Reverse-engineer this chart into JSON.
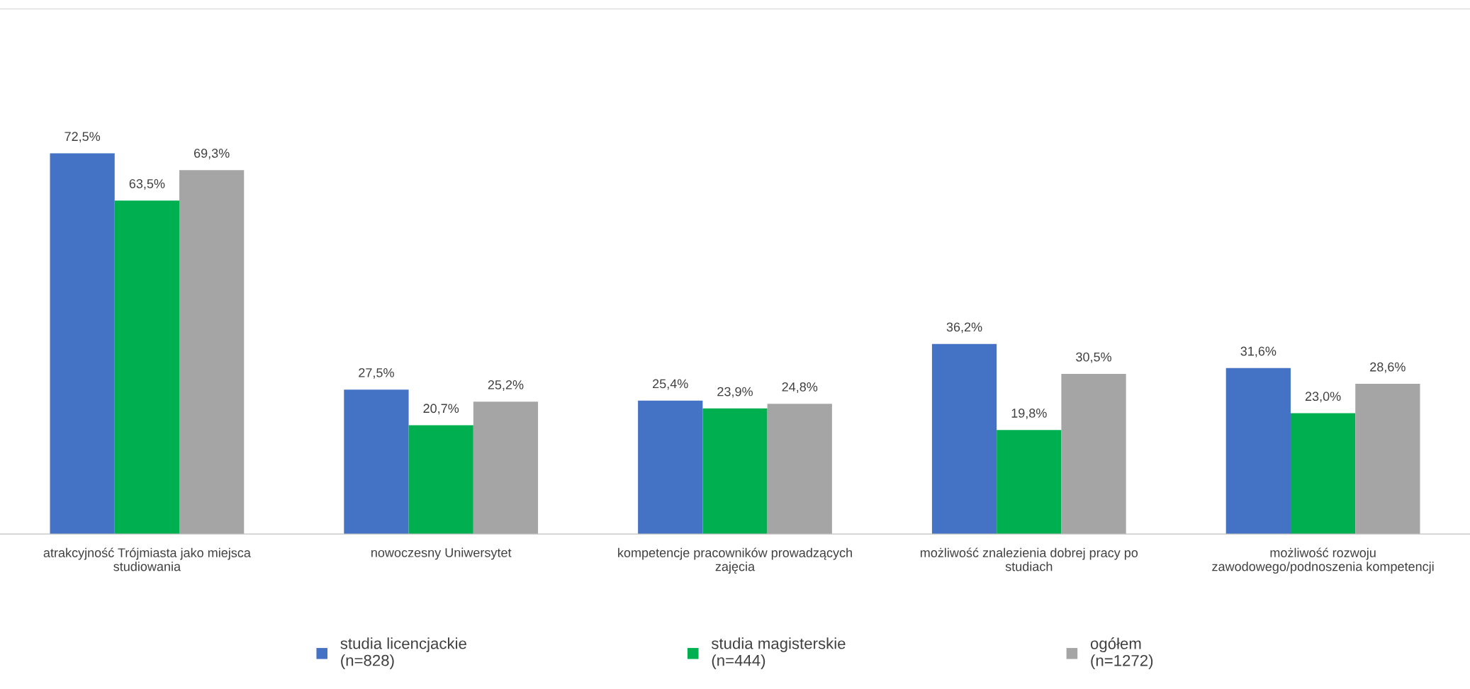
{
  "chart_data": {
    "type": "bar",
    "categories": [
      "atrakcyjność Trójmiasta jako miejsca\nstudiowania",
      "nowoczesny Uniwersytet",
      "kompetencje pracowników prowadzących\nzajęcia",
      "możliwość znalezienia dobrej pracy po\nstudiach",
      "możliwość rozwoju\nzawodowego/podnoszenia kompetencji"
    ],
    "series": [
      {
        "name": "studia licencjackie\n(n=828)",
        "color": "#4472c4",
        "values": [
          72.5,
          27.5,
          25.4,
          36.2,
          31.6
        ],
        "value_labels": [
          "72,5%",
          "27,5%",
          "25,4%",
          "36,2%",
          "31,6%"
        ]
      },
      {
        "name": "studia magisterskie\n(n=444)",
        "color": "#00b050",
        "values": [
          63.5,
          20.7,
          23.9,
          19.8,
          23.0
        ],
        "value_labels": [
          "63,5%",
          "20,7%",
          "23,9%",
          "19,8%",
          "23,0%"
        ]
      },
      {
        "name": "ogółem\n(n=1272)",
        "color": "#a5a5a5",
        "values": [
          69.3,
          25.2,
          24.8,
          30.5,
          28.6
        ],
        "value_labels": [
          "69,3%",
          "25,2%",
          "24,8%",
          "30,5%",
          "28,6%"
        ]
      }
    ],
    "ylim": [
      0,
      100
    ],
    "tick_labels": "x",
    "legend": "bottom"
  }
}
